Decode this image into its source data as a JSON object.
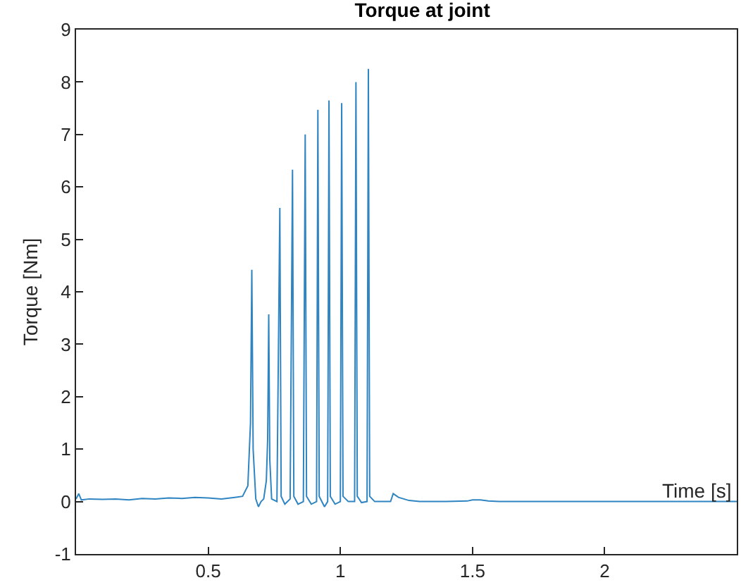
{
  "chart_data": {
    "type": "line",
    "title": "Torque at joint",
    "xlabel": "Time [s]",
    "ylabel": "Torque [Nm]",
    "xlim": [
      0,
      2.5
    ],
    "ylim": [
      -1,
      9
    ],
    "xticks": [
      0.5,
      1,
      1.5,
      2
    ],
    "yticks": [
      -1,
      0,
      1,
      2,
      3,
      4,
      5,
      6,
      7,
      8,
      9
    ],
    "series": [
      {
        "color": "#2f84c2",
        "x": [
          0,
          0.01,
          0.02,
          0.05,
          0.1,
          0.15,
          0.2,
          0.25,
          0.3,
          0.35,
          0.4,
          0.45,
          0.5,
          0.55,
          0.6,
          0.63,
          0.65,
          0.66,
          0.665,
          0.67,
          0.68,
          0.69,
          0.7,
          0.71,
          0.72,
          0.725,
          0.729,
          0.733,
          0.74,
          0.76,
          0.771,
          0.776,
          0.79,
          0.81,
          0.819,
          0.824,
          0.84,
          0.86,
          0.867,
          0.872,
          0.89,
          0.91,
          0.915,
          0.92,
          0.94,
          0.952,
          0.957,
          0.962,
          0.98,
          1.0,
          1.005,
          1.01,
          1.03,
          1.054,
          1.059,
          1.064,
          1.08,
          1.101,
          1.106,
          1.111,
          1.13,
          1.16,
          1.19,
          1.2,
          1.22,
          1.26,
          1.3,
          1.4,
          1.48,
          1.5,
          1.53,
          1.56,
          1.6,
          1.8,
          2.0,
          2.2,
          2.5
        ],
        "values": [
          0.05,
          0.15,
          0.03,
          0.05,
          0.04,
          0.05,
          0.03,
          0.06,
          0.05,
          0.07,
          0.06,
          0.08,
          0.07,
          0.05,
          0.08,
          0.1,
          0.3,
          1.5,
          4.42,
          1.0,
          0.05,
          -0.1,
          0.0,
          0.05,
          0.4,
          1.2,
          3.57,
          0.8,
          0.05,
          0.0,
          5.6,
          0.1,
          -0.05,
          0.05,
          6.33,
          0.1,
          -0.05,
          0.0,
          7.0,
          0.1,
          -0.05,
          0.0,
          7.47,
          0.1,
          -0.1,
          0.0,
          7.65,
          0.1,
          -0.05,
          0.0,
          7.6,
          0.1,
          0.0,
          0.0,
          8.0,
          0.1,
          -0.02,
          0.0,
          8.25,
          0.1,
          0.0,
          0.0,
          0.0,
          0.15,
          0.08,
          0.02,
          0.0,
          0.0,
          0.01,
          0.03,
          0.03,
          0.01,
          0.0,
          0.0,
          0.0,
          0.0,
          0.0
        ]
      }
    ]
  }
}
